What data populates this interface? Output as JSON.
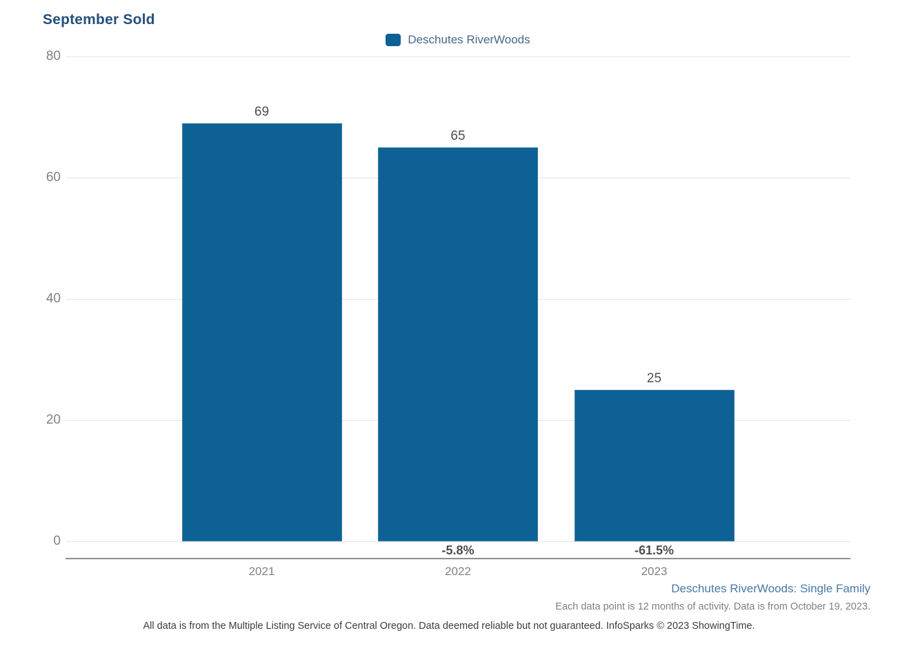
{
  "chart_data": {
    "type": "bar",
    "title": "September Sold",
    "categories": [
      "2021",
      "2022",
      "2023"
    ],
    "values": [
      69,
      65,
      25
    ],
    "value_labels": [
      "69",
      "65",
      "25"
    ],
    "pct_change_labels": [
      "",
      "-5.8%",
      "-61.5%"
    ],
    "series": [
      {
        "name": "Deschutes RiverWoods",
        "values": [
          69,
          65,
          25
        ]
      }
    ],
    "legend": [
      {
        "label": "Deschutes RiverWoods",
        "color": "#0e6194"
      }
    ],
    "legend_position": "top-center",
    "xlabel": "",
    "ylabel": "",
    "ylim": [
      0,
      80
    ],
    "yticks": [
      0,
      20,
      40,
      60,
      80
    ],
    "grid": true
  },
  "footer": {
    "series_note": "Deschutes RiverWoods: Single Family",
    "data_note": "Each data point is 12 months of activity. Data is from October 19, 2023.",
    "disclaimer": "All data is from the Multiple Listing Service of Central Oregon. Data deemed reliable but not guaranteed. InfoSparks © 2023 ShowingTime."
  },
  "colors": {
    "bar": "#0e6194",
    "title": "#26507b",
    "legend_text": "#45688e",
    "tick_text": "#808080",
    "value_text": "#4d4d4d",
    "pct_text": "#4d4d4d",
    "gridline": "#e6e6e6",
    "axis_line": "#8c8c8c",
    "footer_blue": "#4779aa",
    "footer_gray": "#7f7f7f",
    "disclaimer_text": "#3c3c3c",
    "background": "#ffffff"
  }
}
